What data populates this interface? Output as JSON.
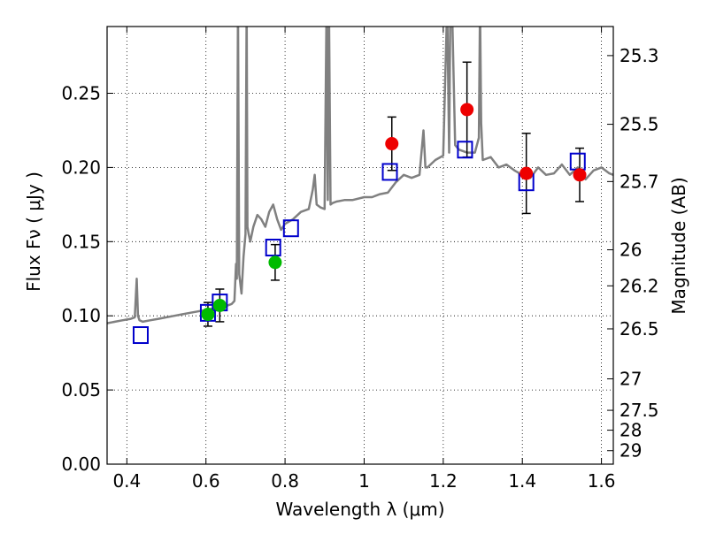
{
  "chart_data": {
    "type": "scatter",
    "xlabel": "Wavelength  λ (μm)",
    "ylabel": "Flux  Fν  ( μJy )",
    "y2label": "Magnitude (AB)",
    "xlim": [
      0.35,
      1.63
    ],
    "ylim": [
      0.0,
      0.295
    ],
    "grid": true,
    "x_ticks": [
      0.4,
      0.6,
      0.8,
      1.0,
      1.2,
      1.4,
      1.6
    ],
    "x_tick_labels": [
      "0.4",
      "0.6",
      "0.8",
      "1",
      "1.2",
      "1.4",
      "1.6"
    ],
    "y_ticks": [
      0.0,
      0.05,
      0.1,
      0.15,
      0.2,
      0.25
    ],
    "y_tick_labels": [
      "0.00",
      "0.05",
      "0.10",
      "0.15",
      "0.20",
      "0.25"
    ],
    "y2_ticks": [
      {
        "label": "25.3",
        "flux": 0.2754
      },
      {
        "label": "25.5",
        "flux": 0.2291
      },
      {
        "label": "25.7",
        "flux": 0.1905
      },
      {
        "label": "26",
        "flux": 0.1445
      },
      {
        "label": "26.2",
        "flux": 0.1202
      },
      {
        "label": "26.5",
        "flux": 0.0912
      },
      {
        "label": "27",
        "flux": 0.0575
      },
      {
        "label": "27.5",
        "flux": 0.0363
      },
      {
        "label": "28",
        "flux": 0.0229
      },
      {
        "label": "29",
        "flux": 0.0091
      }
    ],
    "colors": {
      "spectrum": "#808080",
      "green_points": "#00bb00",
      "red_points": "#ee0000",
      "model_boxes": "#0000cc",
      "errorbars": "#000000",
      "grid": "#000000"
    },
    "spectrum": {
      "x": [
        0.35,
        0.37,
        0.39,
        0.41,
        0.42,
        0.425,
        0.428,
        0.432,
        0.44,
        0.46,
        0.48,
        0.5,
        0.52,
        0.54,
        0.56,
        0.58,
        0.6,
        0.62,
        0.64,
        0.655,
        0.665,
        0.672,
        0.676,
        0.678,
        0.681,
        0.684,
        0.69,
        0.695,
        0.7,
        0.703,
        0.705,
        0.708,
        0.712,
        0.72,
        0.73,
        0.74,
        0.75,
        0.76,
        0.77,
        0.78,
        0.79,
        0.8,
        0.82,
        0.84,
        0.86,
        0.87,
        0.875,
        0.88,
        0.89,
        0.9,
        0.905,
        0.908,
        0.911,
        0.915,
        0.92,
        0.93,
        0.95,
        0.97,
        1.0,
        1.02,
        1.04,
        1.06,
        1.08,
        1.1,
        1.12,
        1.14,
        1.15,
        1.155,
        1.16,
        1.18,
        1.2,
        1.21,
        1.215,
        1.218,
        1.222,
        1.23,
        1.24,
        1.26,
        1.28,
        1.29,
        1.293,
        1.296,
        1.3,
        1.32,
        1.34,
        1.36,
        1.38,
        1.4,
        1.42,
        1.44,
        1.46,
        1.48,
        1.5,
        1.52,
        1.54,
        1.56,
        1.58,
        1.6,
        1.62,
        1.63
      ],
      "y": [
        0.095,
        0.096,
        0.097,
        0.098,
        0.099,
        0.125,
        0.1,
        0.097,
        0.096,
        0.097,
        0.098,
        0.099,
        0.1,
        0.101,
        0.102,
        0.103,
        0.104,
        0.105,
        0.106,
        0.107,
        0.108,
        0.11,
        0.135,
        0.125,
        0.31,
        0.128,
        0.115,
        0.14,
        0.155,
        0.31,
        0.16,
        0.155,
        0.15,
        0.16,
        0.168,
        0.165,
        0.16,
        0.17,
        0.175,
        0.165,
        0.158,
        0.162,
        0.165,
        0.17,
        0.172,
        0.185,
        0.195,
        0.175,
        0.173,
        0.172,
        0.31,
        0.178,
        0.31,
        0.175,
        0.176,
        0.177,
        0.178,
        0.178,
        0.18,
        0.18,
        0.182,
        0.183,
        0.19,
        0.195,
        0.193,
        0.195,
        0.225,
        0.2,
        0.2,
        0.205,
        0.208,
        0.31,
        0.21,
        0.31,
        0.31,
        0.215,
        0.212,
        0.21,
        0.21,
        0.22,
        0.31,
        0.23,
        0.205,
        0.207,
        0.2,
        0.202,
        0.198,
        0.195,
        0.193,
        0.2,
        0.195,
        0.196,
        0.202,
        0.195,
        0.2,
        0.192,
        0.198,
        0.2,
        0.196,
        0.195
      ]
    },
    "green_points": [
      {
        "x": 0.605,
        "y": 0.101,
        "err": 0.008
      },
      {
        "x": 0.635,
        "y": 0.107,
        "err": 0.011
      },
      {
        "x": 0.775,
        "y": 0.136,
        "err": 0.012
      }
    ],
    "red_points": [
      {
        "x": 1.07,
        "y": 0.216,
        "err": 0.018
      },
      {
        "x": 1.26,
        "y": 0.239,
        "err": 0.032
      },
      {
        "x": 1.41,
        "y": 0.196,
        "err": 0.027
      },
      {
        "x": 1.545,
        "y": 0.195,
        "err": 0.018
      }
    ],
    "model_boxes": [
      {
        "x": 0.435,
        "y": 0.087
      },
      {
        "x": 0.605,
        "y": 0.102
      },
      {
        "x": 0.635,
        "y": 0.109
      },
      {
        "x": 0.77,
        "y": 0.146
      },
      {
        "x": 0.815,
        "y": 0.159
      },
      {
        "x": 1.065,
        "y": 0.197
      },
      {
        "x": 1.255,
        "y": 0.212
      },
      {
        "x": 1.41,
        "y": 0.19
      },
      {
        "x": 1.54,
        "y": 0.204
      }
    ]
  }
}
